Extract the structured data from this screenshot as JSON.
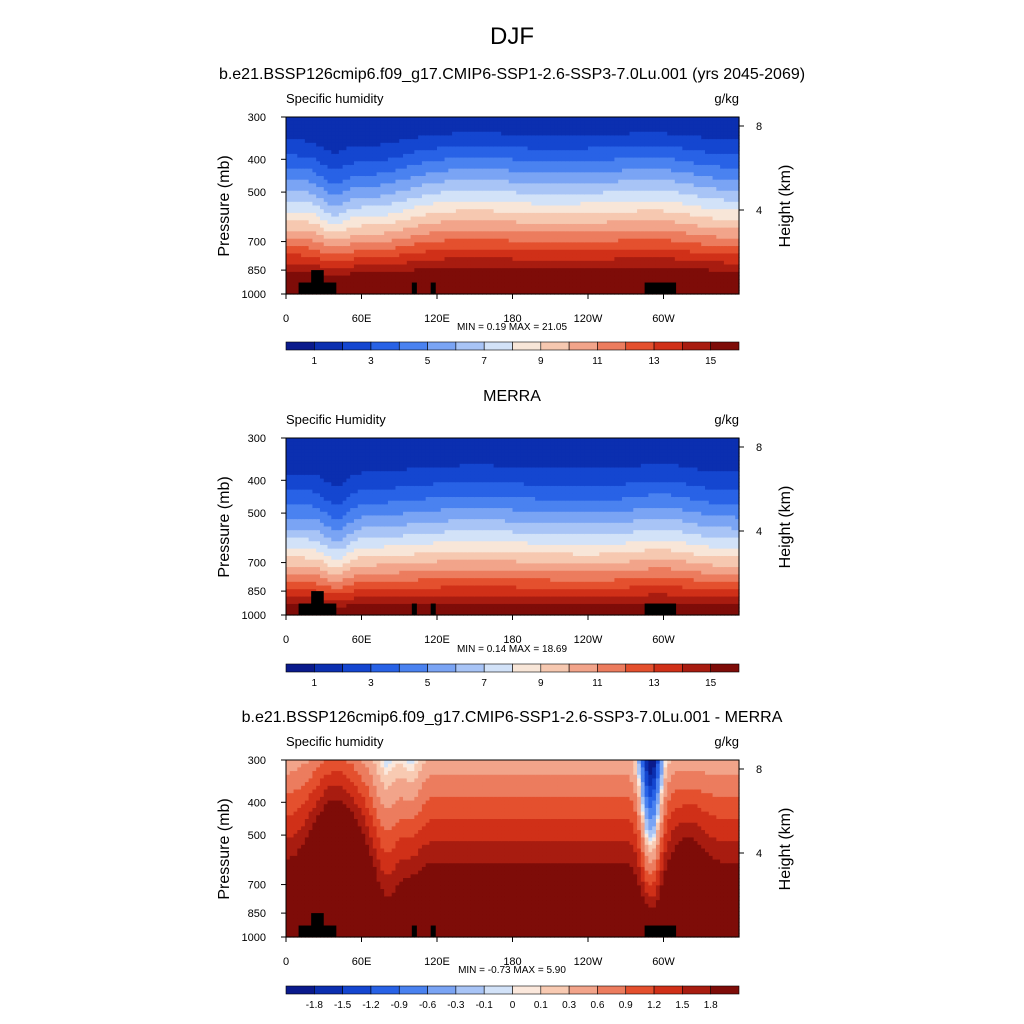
{
  "figure": {
    "main_title": "DJF"
  },
  "chart_data": [
    {
      "type": "heatmap",
      "title": "b.e21.BSSP126cmip6.f09_g17.CMIP6-SSP1-2.6-SSP3-7.0Lu.001 (yrs 2045-2069)",
      "left_label": "Specific humidity",
      "right_label": "g/kg",
      "ylabel": "Pressure (mb)",
      "ylabel_right": "Height (km)",
      "x_ticks": [
        "0",
        "60E",
        "120E",
        "180",
        "120W",
        "60W"
      ],
      "y_ticks": [
        "300",
        "400",
        "500",
        "700",
        "850",
        "1000"
      ],
      "y_right_ticks": [
        "8",
        "4"
      ],
      "stats_text": "MIN =   0.19  MAX =  21.05",
      "min": 0.19,
      "max": 21.05,
      "colorbar_labels": [
        "1",
        "3",
        "5",
        "7",
        "9",
        "11",
        "13",
        "15"
      ],
      "field": "model"
    },
    {
      "type": "heatmap",
      "title": "MERRA",
      "left_label": "Specific Humidity",
      "right_label": "g/kg",
      "ylabel": "Pressure (mb)",
      "ylabel_right": "Height (km)",
      "x_ticks": [
        "0",
        "60E",
        "120E",
        "180",
        "120W",
        "60W"
      ],
      "y_ticks": [
        "300",
        "400",
        "500",
        "700",
        "850",
        "1000"
      ],
      "y_right_ticks": [
        "8",
        "4"
      ],
      "stats_text": "MIN =   0.14  MAX =  18.69",
      "min": 0.14,
      "max": 18.69,
      "colorbar_labels": [
        "1",
        "3",
        "5",
        "7",
        "9",
        "11",
        "13",
        "15"
      ],
      "field": "obs"
    },
    {
      "type": "heatmap",
      "title": "b.e21.BSSP126cmip6.f09_g17.CMIP6-SSP1-2.6-SSP3-7.0Lu.001 - MERRA",
      "left_label": "Specific humidity",
      "right_label": "g/kg",
      "ylabel": "Pressure (mb)",
      "ylabel_right": "Height (km)",
      "x_ticks": [
        "0",
        "60E",
        "120E",
        "180",
        "120W",
        "60W"
      ],
      "y_ticks": [
        "300",
        "400",
        "500",
        "700",
        "850",
        "1000"
      ],
      "y_right_ticks": [
        "8",
        "4"
      ],
      "stats_text": "MIN =  -0.73  MAX =   5.90",
      "min": -0.73,
      "max": 5.9,
      "colorbar_labels": [
        "-1.8",
        "-1.5",
        "-1.2",
        "-0.9",
        "-0.6",
        "-0.3",
        "-0.1",
        "0",
        "0.1",
        "0.3",
        "0.6",
        "0.9",
        "1.2",
        "1.5",
        "1.8"
      ],
      "field": "diff"
    }
  ],
  "colors": {
    "seq_palette": [
      "#0a1a8c",
      "#0b2fb0",
      "#1446d0",
      "#2862e6",
      "#4a82f0",
      "#7aa4f4",
      "#a8c4f6",
      "#d2e2f8",
      "#f8e6d8",
      "#f6c8b0",
      "#f2a48a",
      "#ec7c5e",
      "#e4502e",
      "#d03018",
      "#a81c10",
      "#7e0c08"
    ],
    "div_palette": [
      "#0a1a8c",
      "#0b2fb0",
      "#1446d0",
      "#2862e6",
      "#4a82f0",
      "#7aa4f4",
      "#a8c4f6",
      "#d2e2f8",
      "#fbe8dc",
      "#f8cab2",
      "#f2a48a",
      "#ec7c5e",
      "#e4502e",
      "#d03018",
      "#a81c10",
      "#7e0c08"
    ],
    "topography": "#000000"
  }
}
